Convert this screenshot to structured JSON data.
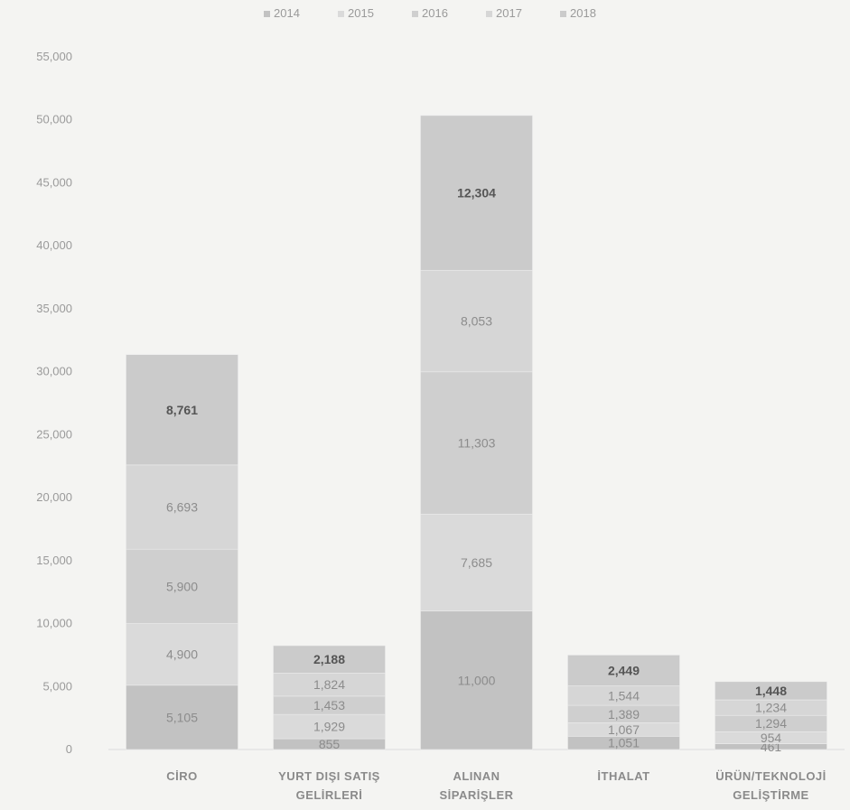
{
  "chart_data": {
    "type": "bar",
    "stacked": true,
    "categories": [
      [
        "CİRO"
      ],
      [
        "YURT DIŞI SATIŞ",
        "GELİRLERİ"
      ],
      [
        "ALINAN",
        "SİPARİŞLER"
      ],
      [
        "İTHALAT"
      ],
      [
        "ÜRÜN/TEKNOLOJİ",
        "GELİŞTİRME"
      ]
    ],
    "series": [
      {
        "name": "2014",
        "color": "#c2c2c2",
        "values": [
          5105,
          855,
          11000,
          1051,
          461
        ]
      },
      {
        "name": "2015",
        "color": "#dadada",
        "values": [
          4900,
          1929,
          7685,
          1067,
          954
        ]
      },
      {
        "name": "2016",
        "color": "#cfcfcf",
        "values": [
          5900,
          1453,
          11303,
          1389,
          1294
        ]
      },
      {
        "name": "2017",
        "color": "#d6d6d6",
        "values": [
          6693,
          1824,
          8053,
          1544,
          1234
        ]
      },
      {
        "name": "2018",
        "color": "#cbcbcb",
        "values": [
          8761,
          2188,
          12304,
          2449,
          1448
        ]
      }
    ],
    "data_labels": [
      [
        "5,105",
        "4,900",
        "5,900",
        "6,693",
        "8,761"
      ],
      [
        "855",
        "1,929",
        "1,453",
        "1,824",
        "2,188"
      ],
      [
        "11,000",
        "7,685",
        "11,303",
        "8,053",
        "12,304"
      ],
      [
        "1,051",
        "1,067",
        "1,389",
        "1,544",
        "2,449"
      ],
      [
        "461",
        "954",
        "1,294",
        "1,234",
        "1,448"
      ]
    ],
    "y_ticks": [
      "0",
      "5,000",
      "10,000",
      "15,000",
      "20,000",
      "25,000",
      "30,000",
      "35,000",
      "40,000",
      "45,000",
      "50,000",
      "55,000"
    ],
    "ylim": [
      0,
      55000
    ],
    "legend_position": "top",
    "grid": false
  }
}
